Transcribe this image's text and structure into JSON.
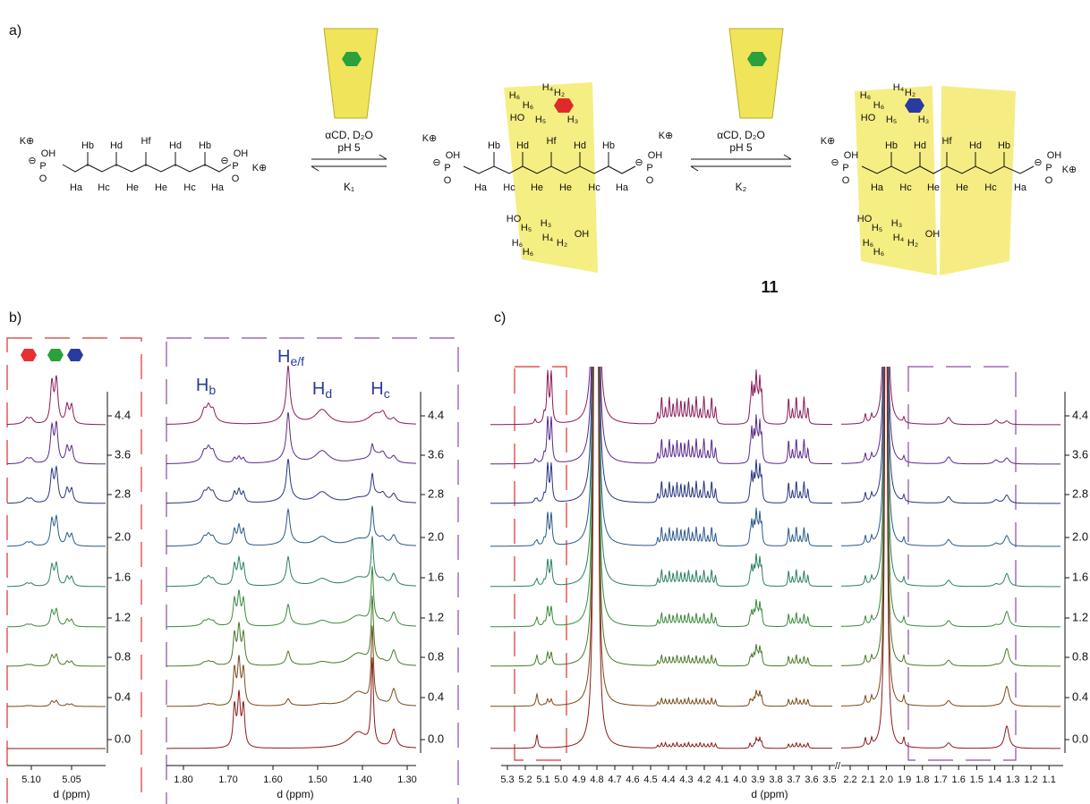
{
  "panel_a": {
    "label": "a)",
    "cation": "K⊕",
    "phosphate": {
      "minus": "⊖",
      "oh": "OH",
      "o": "O",
      "p": "P"
    },
    "free_top": [
      "Hb",
      "Hd",
      "Hf",
      "Hd",
      "Hb"
    ],
    "free_bottom": [
      "Ha",
      "Hc",
      "He",
      "He",
      "Hc",
      "Ha"
    ],
    "step_1": {
      "reagent": "αCD, D₂O",
      "condition": "pH 5",
      "constant": "K₁"
    },
    "step_2": {
      "reagent": "αCD, D₂O",
      "condition": "pH 5",
      "constant": "K₂"
    },
    "cone_top_labels": [
      "H₆",
      "H₆",
      "H₄",
      "H₂",
      "HO",
      "H₅",
      "H₃"
    ],
    "cone_bottom_labels": [
      "H₅",
      "H₃",
      "H₆",
      "H₆",
      "H₄",
      "H₂",
      "HO",
      "OH"
    ],
    "compound": "11"
  },
  "panel_b": {
    "label": "b)",
    "x_title": "d (ppm)",
    "left": {
      "xticks": [
        "5.10",
        "5.05"
      ],
      "row_labels": [
        "4.4",
        "3.6",
        "2.8",
        "2.0",
        "1.6",
        "1.2",
        "0.8",
        "0.4",
        "0.0"
      ]
    },
    "right": {
      "xticks": [
        "1.80",
        "1.70",
        "1.60",
        "1.50",
        "1.40",
        "1.30"
      ],
      "row_labels": [
        "4.4",
        "3.6",
        "2.8",
        "2.0",
        "1.6",
        "1.2",
        "0.8",
        "0.4",
        "0.0"
      ],
      "peak_labels": [
        {
          "main": "H",
          "sub": "b"
        },
        {
          "main": "H",
          "sub": "e/f"
        },
        {
          "main": "H",
          "sub": "d"
        },
        {
          "main": "H",
          "sub": "c"
        }
      ]
    }
  },
  "panel_c": {
    "label": "c)",
    "x_title": "d (ppm)",
    "row_labels": [
      "4.4",
      "3.6",
      "2.8",
      "2.0",
      "1.6",
      "1.2",
      "0.8",
      "0.4",
      "0.0"
    ],
    "xticks_high": [
      "5.3",
      "5.2",
      "5.1",
      "5.0",
      "4.9",
      "4.8",
      "4.7",
      "4.6",
      "4.5",
      "4.4",
      "4.3",
      "4.2",
      "4.1",
      "4.0",
      "3.9",
      "3.8",
      "3.7",
      "3.6",
      "3.5"
    ],
    "xticks_low": [
      "2.2",
      "2.1",
      "2.0",
      "1.9",
      "1.8",
      "1.7",
      "1.6",
      "1.5",
      "1.4",
      "1.3",
      "1.2",
      "1.1"
    ]
  }
}
